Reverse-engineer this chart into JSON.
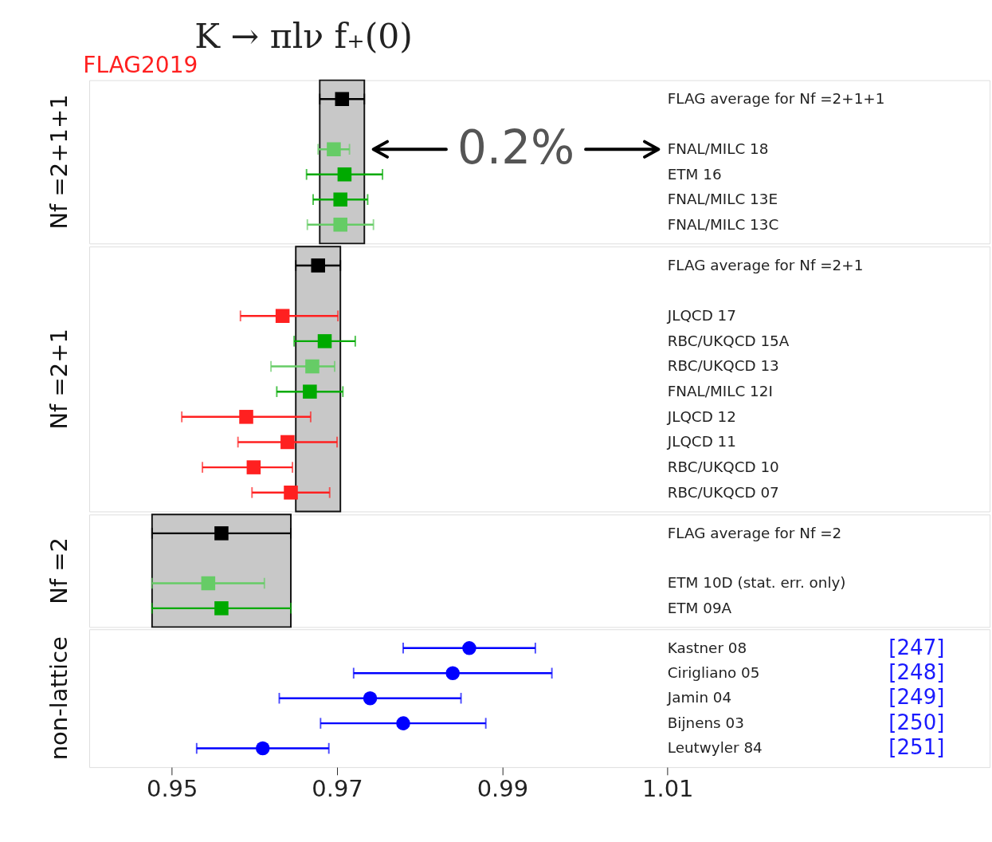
{
  "chart_data": [
    {
      "type": "scatter",
      "orientation": "horizontal",
      "title": "K → πlν      f₊(0)",
      "ylabel": "Nf =2+1+1",
      "annotations": [
        "FLAG2019",
        "0.2%"
      ],
      "categories": [
        "FLAG average for Nf =2+1+1",
        null,
        "FNAL/MILC 18",
        "ETM 16",
        "FNAL/MILC 13E",
        "FNAL/MILC 13C"
      ],
      "xlim": [
        0.94,
        1.049
      ],
      "xticks": [
        0.95,
        0.97,
        0.99,
        1.01
      ],
      "tick_labels": "y",
      "marker": "square",
      "grid": false,
      "bands": [
        {
          "axis": "x",
          "from": 0.9679,
          "to": 0.9733,
          "color": "#c8c8c8"
        }
      ],
      "series": [
        {
          "color": "#000000",
          "values": [
            0.9706,
            null,
            null,
            null,
            null,
            null
          ],
          "errors": [
            0.0027,
            null,
            null,
            null,
            null,
            null
          ]
        },
        {
          "color": "#00aa00",
          "values": [
            null,
            null,
            null,
            0.9709,
            0.9704,
            null
          ],
          "errors": [
            null,
            null,
            null,
            0.0046,
            0.0033,
            null
          ]
        },
        {
          "color": "#66cc66",
          "values": [
            null,
            null,
            0.9696,
            null,
            null,
            0.9704
          ],
          "errors": [
            null,
            null,
            0.0019,
            null,
            null,
            0.004
          ]
        }
      ]
    },
    {
      "type": "scatter",
      "orientation": "horizontal",
      "ylabel": "Nf =2+1",
      "categories": [
        "FLAG average for Nf =2+1",
        null,
        "JLQCD 17",
        "RBC/UKQCD 15A",
        "RBC/UKQCD 13",
        "FNAL/MILC 12I",
        "JLQCD 12",
        "JLQCD 11",
        "RBC/UKQCD 10",
        "RBC/UKQCD 07"
      ],
      "xlim": [
        0.94,
        1.049
      ],
      "xticks": [
        0.95,
        0.97,
        0.99,
        1.01
      ],
      "tick_labels": "y",
      "marker": "square",
      "grid": false,
      "bands": [
        {
          "axis": "x",
          "from": 0.965,
          "to": 0.9704,
          "color": "#c8c8c8"
        }
      ],
      "series": [
        {
          "color": "#000000",
          "values": [
            0.9677,
            null,
            null,
            null,
            null,
            null,
            null,
            null,
            null,
            null
          ],
          "errors": [
            0.0027,
            null,
            null,
            null,
            null,
            null,
            null,
            null,
            null,
            null
          ]
        },
        {
          "color": "#00aa00",
          "values": [
            null,
            null,
            null,
            0.9685,
            null,
            0.9667,
            null,
            null,
            null,
            null
          ],
          "errors": [
            null,
            null,
            null,
            0.0037,
            null,
            0.004,
            null,
            null,
            null,
            null
          ]
        },
        {
          "color": "#66cc66",
          "values": [
            null,
            null,
            null,
            null,
            0.967,
            null,
            null,
            null,
            null,
            null
          ],
          "errors": [
            null,
            null,
            null,
            null,
            [
              0.962,
              0.9697
            ],
            null,
            null,
            null,
            null,
            null
          ]
        },
        {
          "color": "#ff2020",
          "values": [
            null,
            null,
            0.9634,
            null,
            null,
            null,
            0.959,
            0.964,
            0.9599,
            0.9644
          ],
          "errors": [
            null,
            null,
            [
              0.9583,
              0.9701
            ],
            null,
            null,
            null,
            0.0078,
            0.006,
            [
              0.9537,
              0.9646
            ],
            0.0047
          ]
        }
      ]
    },
    {
      "type": "scatter",
      "orientation": "horizontal",
      "ylabel": "Nf =2",
      "categories": [
        "FLAG average for Nf =2",
        null,
        "ETM 10D (stat. err. only)",
        "ETM 09A"
      ],
      "xlim": [
        0.94,
        1.049
      ],
      "xticks": [
        0.95,
        0.97,
        0.99,
        1.01
      ],
      "tick_labels": "y",
      "marker": "square",
      "grid": false,
      "bands": [
        {
          "axis": "x",
          "from": 0.9476,
          "to": 0.9644,
          "color": "#c8c8c8"
        }
      ],
      "series": [
        {
          "color": "#000000",
          "values": [
            0.956,
            null,
            null,
            null
          ],
          "errors": [
            0.0084,
            null,
            null,
            null
          ]
        },
        {
          "color": "#00aa00",
          "values": [
            null,
            null,
            null,
            0.956
          ],
          "errors": [
            null,
            null,
            null,
            0.0084
          ]
        },
        {
          "color": "#66cc66",
          "values": [
            null,
            null,
            0.9544,
            null
          ],
          "errors": [
            null,
            null,
            0.0068,
            null
          ]
        }
      ]
    },
    {
      "type": "scatter",
      "orientation": "horizontal",
      "ylabel": "non-lattice",
      "categories": [
        "Kastner 08",
        "Cirigliano 05",
        "Jamin 04",
        "Bijnens 03",
        "Leutwyler 84"
      ],
      "xlim": [
        0.94,
        1.049
      ],
      "xticks": [
        0.95,
        0.97,
        0.99,
        1.01
      ],
      "marker": "circle",
      "grid": false,
      "annotations": [
        "[247]",
        "[248]",
        "[249]",
        "[250]",
        "[251]"
      ],
      "series": [
        {
          "color": "#0000ff",
          "values": [
            0.986,
            0.984,
            0.974,
            0.978,
            0.961
          ],
          "errors": [
            0.008,
            0.012,
            0.011,
            0.01,
            0.008
          ]
        }
      ]
    }
  ]
}
